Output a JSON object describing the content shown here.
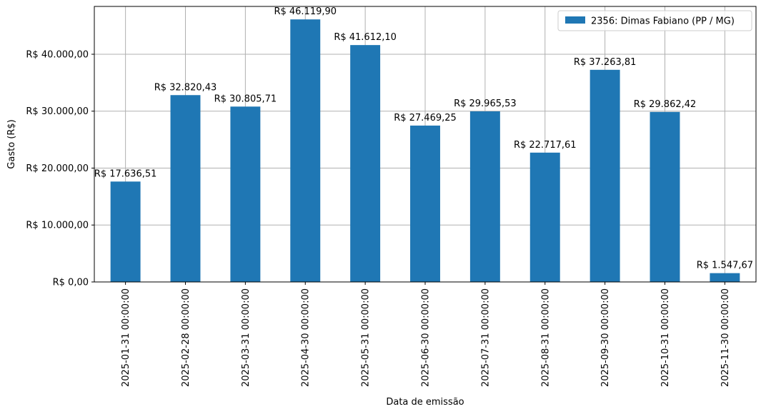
{
  "chart_data": {
    "type": "bar",
    "xlabel": "Data de emissão",
    "ylabel": "Gasto (R$)",
    "categories": [
      "2025-01-31 00:00:00",
      "2025-02-28 00:00:00",
      "2025-03-31 00:00:00",
      "2025-04-30 00:00:00",
      "2025-05-31 00:00:00",
      "2025-06-30 00:00:00",
      "2025-07-31 00:00:00",
      "2025-08-31 00:00:00",
      "2025-09-30 00:00:00",
      "2025-10-31 00:00:00",
      "2025-11-30 00:00:00"
    ],
    "series": [
      {
        "name": "2356: Dimas Fabiano (PP / MG)",
        "color": "#1f77b4",
        "values": [
          17636.51,
          32820.43,
          30805.71,
          46119.9,
          41612.1,
          27469.25,
          29965.53,
          22717.61,
          37263.81,
          29862.42,
          1547.67
        ]
      }
    ],
    "value_labels": [
      "R$ 17.636,51",
      "R$ 32.820,43",
      "R$ 30.805,71",
      "R$ 46.119,90",
      "R$ 41.612,10",
      "R$ 27.469,25",
      "R$ 29.965,53",
      "R$ 22.717,61",
      "R$ 37.263,81",
      "R$ 29.862,42",
      "R$ 1.547,67"
    ],
    "yticks": [
      0,
      10000,
      20000,
      30000,
      40000
    ],
    "ytick_labels": [
      "R$ 0,00",
      "R$ 10.000,00",
      "R$ 20.000,00",
      "R$ 30.000,00",
      "R$ 40.000,00"
    ],
    "ylim": [
      0,
      48400
    ],
    "grid": true,
    "legend_position": "top-right"
  }
}
